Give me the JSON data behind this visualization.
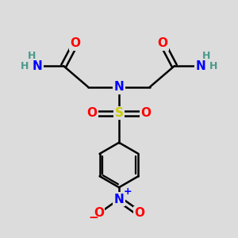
{
  "bg_color": "#dcdcdc",
  "bond_color": "#000000",
  "bond_width": 1.8,
  "atom_colors": {
    "C": "#000000",
    "H": "#4a9a8a",
    "N": "#0000ff",
    "O": "#ff0000",
    "S": "#cccc00"
  },
  "font_size": 11,
  "small_font_size": 8,
  "charge_font_size": 9
}
